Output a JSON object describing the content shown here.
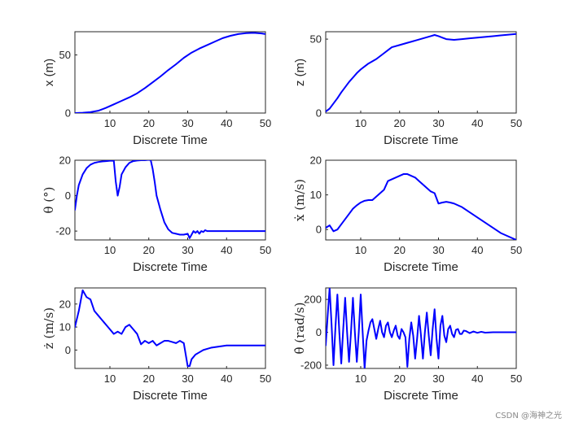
{
  "figure": {
    "line_color": "#0000ff",
    "watermark": "CSDN @海神之光"
  },
  "chart_data": [
    {
      "id": "x",
      "type": "line",
      "xlabel": "Discrete Time",
      "ylabel": "x (m)",
      "ylabel_style": "sans",
      "xlim": [
        1,
        50
      ],
      "ylim": [
        0,
        70
      ],
      "xticks": [
        10,
        20,
        30,
        40,
        50
      ],
      "yticks": [
        0,
        50
      ],
      "series": [
        {
          "name": "x",
          "x": [
            1,
            3,
            5,
            7,
            9,
            11,
            13,
            15,
            17,
            19,
            21,
            23,
            25,
            27,
            29,
            31,
            33,
            35,
            37,
            39,
            41,
            43,
            45,
            47,
            49,
            50
          ],
          "y": [
            0,
            0.3,
            0.8,
            2,
            4.5,
            7.5,
            10.5,
            13.5,
            17,
            21.5,
            26.5,
            31.5,
            37,
            42,
            47.5,
            52,
            55.5,
            58.5,
            61.5,
            64.5,
            66.5,
            68,
            68.8,
            69,
            68.5,
            68
          ]
        }
      ]
    },
    {
      "id": "z",
      "type": "line",
      "xlabel": "Discrete Time",
      "ylabel": "z (m)",
      "ylabel_style": "sans",
      "xlim": [
        1,
        50
      ],
      "ylim": [
        0,
        55
      ],
      "xticks": [
        10,
        20,
        30,
        40,
        50
      ],
      "yticks": [
        0,
        50
      ],
      "series": [
        {
          "name": "z",
          "x": [
            1,
            2,
            3,
            4,
            5,
            6,
            7,
            8,
            9,
            10,
            11,
            12,
            13,
            14,
            15,
            16,
            17,
            18,
            20,
            22,
            24,
            26,
            28,
            29,
            30,
            31,
            32,
            34,
            36,
            38,
            40,
            42,
            44,
            46,
            48,
            50
          ],
          "y": [
            1,
            3,
            6.5,
            10,
            14,
            17.5,
            21,
            24,
            27,
            29.5,
            31.5,
            33.5,
            35,
            36.5,
            38.5,
            40.5,
            42.5,
            44.5,
            46,
            47.5,
            49,
            50.5,
            52,
            52.8,
            52,
            51,
            50,
            49.5,
            50,
            50.5,
            51,
            51.5,
            52,
            52.5,
            53,
            53.5
          ]
        }
      ]
    },
    {
      "id": "theta",
      "type": "line",
      "xlabel": "Discrete Time",
      "ylabel": "θ (°)",
      "ylabel_style": "math",
      "xlim": [
        1,
        50
      ],
      "ylim": [
        -25,
        20
      ],
      "xticks": [
        10,
        20,
        30,
        40,
        50
      ],
      "yticks": [
        -20,
        0,
        20
      ],
      "series": [
        {
          "name": "theta",
          "x": [
            1,
            1.5,
            2,
            3,
            4,
            5,
            6,
            7,
            8,
            9,
            10,
            11,
            11.5,
            12,
            12.5,
            13,
            14,
            15,
            16,
            17,
            18,
            19,
            20,
            20.5,
            21,
            21.5,
            22,
            23,
            24,
            25,
            26,
            27,
            28,
            29,
            30,
            30.5,
            31,
            31.5,
            32,
            32.5,
            33,
            33.5,
            34,
            34.5,
            35,
            36,
            38,
            40,
            42,
            44,
            46,
            48,
            50
          ],
          "y": [
            -8,
            0,
            6,
            12,
            15.5,
            17.5,
            18.5,
            19,
            19.3,
            19.5,
            19.7,
            19.8,
            8,
            0,
            5,
            12,
            16,
            18.5,
            19.5,
            19.8,
            20,
            20,
            20.2,
            20,
            15,
            8,
            0,
            -8,
            -15,
            -19,
            -21,
            -21.5,
            -22,
            -22,
            -21.5,
            -24,
            -22,
            -20,
            -21,
            -20,
            -21.5,
            -20,
            -20.5,
            -19.5,
            -20,
            -20,
            -20,
            -20,
            -20,
            -20,
            -20,
            -20,
            -20
          ]
        }
      ]
    },
    {
      "id": "xdot",
      "type": "line",
      "xlabel": "Discrete Time",
      "ylabel": "ẋ (m/s)",
      "ylabel_style": "math",
      "xlim": [
        1,
        50
      ],
      "ylim": [
        -3,
        20
      ],
      "xticks": [
        10,
        20,
        30,
        40,
        50
      ],
      "yticks": [
        0,
        10,
        20
      ],
      "series": [
        {
          "name": "xdot",
          "x": [
            1,
            2,
            3,
            4,
            5,
            6,
            7,
            8,
            9,
            10,
            11,
            12,
            13,
            14,
            15,
            16,
            17,
            18,
            19,
            20,
            21,
            22,
            23,
            24,
            25,
            26,
            27,
            28,
            29,
            30,
            31,
            32,
            33,
            34,
            36,
            38,
            40,
            42,
            44,
            46,
            48,
            50
          ],
          "y": [
            0.5,
            1.2,
            -0.5,
            0,
            1.5,
            3,
            4.5,
            6,
            7,
            7.8,
            8.3,
            8.5,
            8.5,
            9.5,
            10.5,
            11.5,
            14,
            14.5,
            15,
            15.5,
            16,
            16,
            15.5,
            15,
            14,
            13,
            12,
            11,
            10.5,
            7.5,
            7.8,
            8,
            7.8,
            7.5,
            6.5,
            5,
            3.5,
            2,
            0.5,
            -1,
            -2,
            -3
          ]
        }
      ]
    },
    {
      "id": "zdot",
      "type": "line",
      "xlabel": "Discrete Time",
      "ylabel": "ż (m/s)",
      "ylabel_style": "math",
      "xlim": [
        1,
        50
      ],
      "ylim": [
        -8,
        27
      ],
      "xticks": [
        10,
        20,
        30,
        40,
        50
      ],
      "yticks": [
        0,
        10,
        20
      ],
      "series": [
        {
          "name": "zdot",
          "x": [
            1,
            2,
            3,
            4,
            5,
            6,
            7,
            8,
            9,
            10,
            11,
            12,
            13,
            14,
            15,
            16,
            17,
            18,
            19,
            20,
            21,
            22,
            23,
            24,
            25,
            26,
            27,
            28,
            29,
            29.5,
            30,
            30.5,
            31,
            32,
            33,
            34,
            35,
            36,
            38,
            40,
            42,
            44,
            46,
            48,
            50
          ],
          "y": [
            10,
            17,
            26,
            23,
            22,
            17,
            15,
            13,
            11,
            9,
            7,
            8,
            7,
            10,
            11,
            9,
            7,
            2.5,
            4,
            3,
            4,
            2,
            3,
            4,
            4,
            3.5,
            3,
            4,
            3,
            -2,
            -7,
            -7,
            -4,
            -2,
            -1,
            0,
            0.5,
            1,
            1.5,
            2,
            2,
            2,
            2,
            2,
            2
          ]
        }
      ]
    },
    {
      "id": "thetadot",
      "type": "line",
      "xlabel": "Discrete Time",
      "ylabel": "θ̇ (rad/s)",
      "ylabel_style": "math",
      "xlim": [
        1,
        50
      ],
      "ylim": [
        -220,
        270
      ],
      "xticks": [
        10,
        20,
        30,
        40,
        50
      ],
      "yticks": [
        -200,
        0,
        200
      ],
      "series": [
        {
          "name": "thetadot",
          "x": [
            1,
            1.5,
            2,
            2.5,
            3,
            3.5,
            4,
            4.5,
            5,
            5.5,
            6,
            6.5,
            7,
            7.5,
            8,
            8.5,
            9,
            9.5,
            10,
            10.5,
            11,
            11.5,
            12,
            12.5,
            13,
            13.5,
            14,
            14.5,
            15,
            15.5,
            16,
            16.5,
            17,
            17.5,
            18,
            18.5,
            19,
            19.5,
            20,
            20.5,
            21,
            21.5,
            22,
            22.5,
            23,
            23.5,
            24,
            24.5,
            25,
            25.5,
            26,
            26.5,
            27,
            27.5,
            28,
            28.5,
            29,
            29.5,
            30,
            30.5,
            31,
            31.5,
            32,
            32.5,
            33,
            33.5,
            34,
            34.5,
            35,
            35.5,
            36,
            36.5,
            37,
            38,
            39,
            40,
            41,
            42,
            44,
            46,
            48,
            50
          ],
          "y": [
            -80,
            100,
            270,
            50,
            -200,
            30,
            230,
            0,
            -190,
            20,
            210,
            0,
            -180,
            0,
            210,
            0,
            -180,
            0,
            230,
            0,
            -220,
            -50,
            10,
            60,
            80,
            20,
            -40,
            20,
            70,
            0,
            -30,
            40,
            60,
            0,
            -30,
            10,
            40,
            -20,
            -40,
            20,
            0,
            -30,
            -210,
            -40,
            60,
            -20,
            -160,
            -40,
            100,
            -20,
            -160,
            0,
            120,
            -20,
            -140,
            20,
            140,
            -40,
            -160,
            40,
            100,
            -20,
            -60,
            20,
            40,
            -10,
            -30,
            15,
            20,
            -10,
            -10,
            10,
            8,
            -5,
            5,
            -3,
            3,
            -2,
            0,
            0,
            0,
            0
          ]
        }
      ]
    }
  ]
}
